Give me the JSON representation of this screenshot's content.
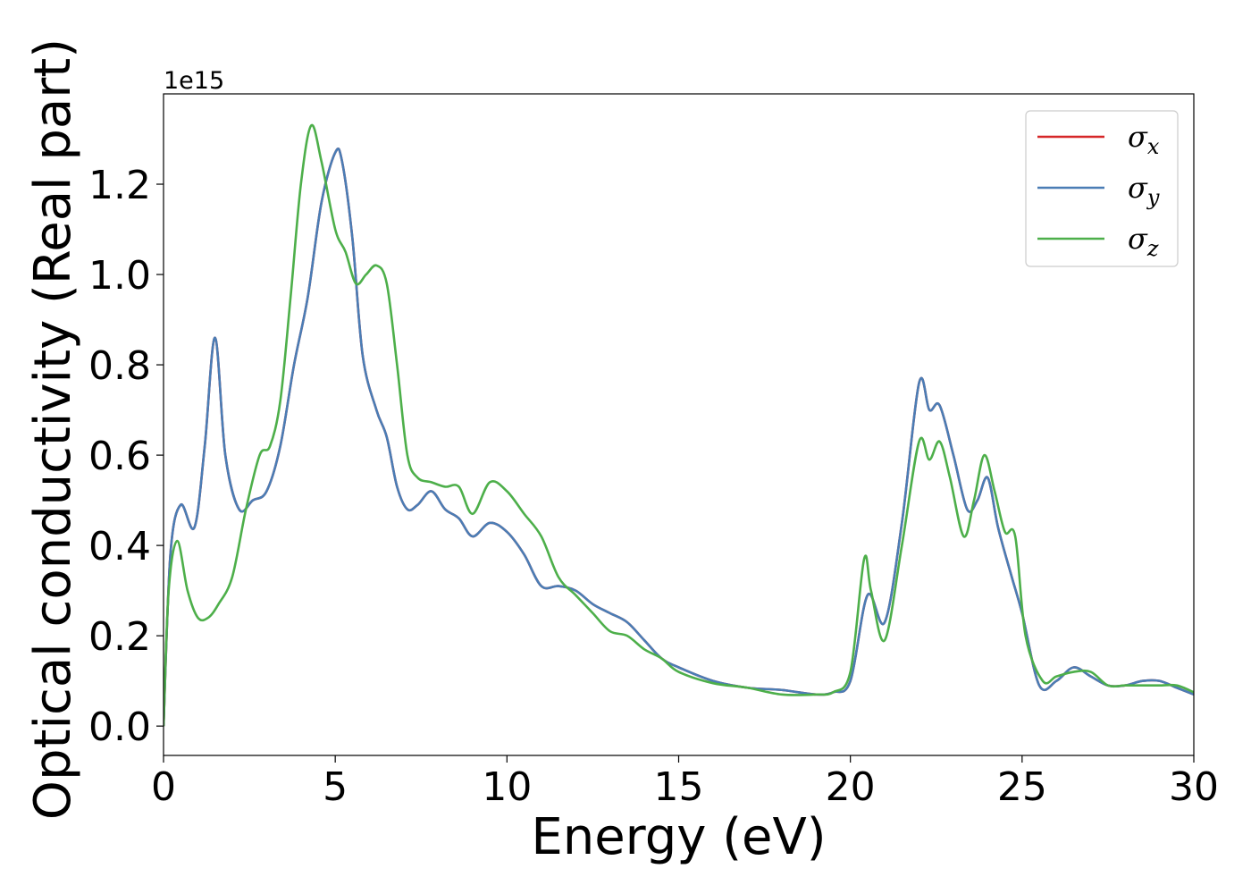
{
  "chart_data": {
    "type": "line",
    "xlabel": "Energy (eV)",
    "ylabel": "Optical conductivity (Real part)",
    "y_offset_label": "1e15",
    "xlim": [
      0,
      30
    ],
    "ylim": [
      -0.065,
      1.4
    ],
    "x_ticks": [
      0,
      5,
      10,
      15,
      20,
      25,
      30
    ],
    "x_tick_labels": [
      "0",
      "5",
      "10",
      "15",
      "20",
      "25",
      "30"
    ],
    "y_ticks": [
      0.0,
      0.2,
      0.4,
      0.6,
      0.8,
      1.0,
      1.2
    ],
    "y_tick_labels": [
      "0.0",
      "0.2",
      "0.4",
      "0.6",
      "0.8",
      "1.0",
      "1.2"
    ],
    "grid": false,
    "legend_position": "top-right",
    "series": [
      {
        "name": "σ_x",
        "legend_base": "σ",
        "legend_sub": "x",
        "color": "#d62728",
        "x": [
          0,
          0.2,
          0.5,
          0.9,
          1.2,
          1.5,
          1.8,
          2.2,
          2.6,
          3.0,
          3.4,
          3.8,
          4.2,
          4.6,
          5.0,
          5.2,
          5.5,
          5.8,
          6.2,
          6.5,
          6.8,
          7.1,
          7.4,
          7.8,
          8.2,
          8.6,
          9.0,
          9.5,
          10.0,
          10.5,
          11.0,
          11.5,
          12.0,
          12.5,
          13.0,
          13.5,
          14.0,
          14.5,
          15.0,
          16.0,
          17.0,
          18.0,
          19.0,
          19.5,
          20.0,
          20.5,
          21.0,
          21.5,
          22.0,
          22.3,
          22.6,
          23.0,
          23.4,
          23.7,
          24.0,
          24.3,
          24.7,
          25.0,
          25.5,
          26.0,
          26.5,
          27.0,
          27.5,
          28.0,
          28.5,
          29.0,
          29.5,
          30.0
        ],
        "y": [
          0.0,
          0.38,
          0.49,
          0.44,
          0.62,
          0.86,
          0.6,
          0.48,
          0.5,
          0.52,
          0.62,
          0.8,
          0.95,
          1.16,
          1.27,
          1.25,
          1.08,
          0.82,
          0.7,
          0.64,
          0.53,
          0.48,
          0.49,
          0.52,
          0.48,
          0.46,
          0.42,
          0.45,
          0.43,
          0.38,
          0.31,
          0.31,
          0.3,
          0.27,
          0.25,
          0.23,
          0.19,
          0.15,
          0.13,
          0.1,
          0.085,
          0.08,
          0.07,
          0.075,
          0.1,
          0.29,
          0.23,
          0.45,
          0.76,
          0.7,
          0.71,
          0.6,
          0.48,
          0.5,
          0.55,
          0.44,
          0.33,
          0.25,
          0.09,
          0.1,
          0.13,
          0.11,
          0.09,
          0.09,
          0.1,
          0.1,
          0.085,
          0.07
        ]
      },
      {
        "name": "σ_y",
        "legend_base": "σ",
        "legend_sub": "y",
        "color": "#4a7db5",
        "x": [
          0,
          0.2,
          0.5,
          0.9,
          1.2,
          1.5,
          1.8,
          2.2,
          2.6,
          3.0,
          3.4,
          3.8,
          4.2,
          4.6,
          5.0,
          5.2,
          5.5,
          5.8,
          6.2,
          6.5,
          6.8,
          7.1,
          7.4,
          7.8,
          8.2,
          8.6,
          9.0,
          9.5,
          10.0,
          10.5,
          11.0,
          11.5,
          12.0,
          12.5,
          13.0,
          13.5,
          14.0,
          14.5,
          15.0,
          16.0,
          17.0,
          18.0,
          19.0,
          19.5,
          20.0,
          20.5,
          21.0,
          21.5,
          22.0,
          22.3,
          22.6,
          23.0,
          23.4,
          23.7,
          24.0,
          24.3,
          24.7,
          25.0,
          25.5,
          26.0,
          26.5,
          27.0,
          27.5,
          28.0,
          28.5,
          29.0,
          29.5,
          30.0
        ],
        "y": [
          0.0,
          0.38,
          0.49,
          0.44,
          0.62,
          0.86,
          0.6,
          0.48,
          0.5,
          0.52,
          0.62,
          0.8,
          0.95,
          1.16,
          1.27,
          1.25,
          1.08,
          0.82,
          0.7,
          0.64,
          0.53,
          0.48,
          0.49,
          0.52,
          0.48,
          0.46,
          0.42,
          0.45,
          0.43,
          0.38,
          0.31,
          0.31,
          0.3,
          0.27,
          0.25,
          0.23,
          0.19,
          0.15,
          0.13,
          0.1,
          0.085,
          0.08,
          0.07,
          0.075,
          0.1,
          0.29,
          0.23,
          0.45,
          0.76,
          0.7,
          0.71,
          0.6,
          0.48,
          0.5,
          0.55,
          0.44,
          0.33,
          0.25,
          0.09,
          0.1,
          0.13,
          0.11,
          0.09,
          0.09,
          0.1,
          0.1,
          0.085,
          0.07
        ]
      },
      {
        "name": "σ_z",
        "legend_base": "σ",
        "legend_sub": "z",
        "color": "#4daf4a",
        "x": [
          0,
          0.15,
          0.4,
          0.7,
          1.0,
          1.3,
          1.6,
          2.0,
          2.4,
          2.8,
          3.1,
          3.4,
          3.7,
          4.0,
          4.3,
          4.6,
          5.0,
          5.3,
          5.6,
          5.9,
          6.2,
          6.5,
          6.8,
          7.1,
          7.4,
          7.8,
          8.2,
          8.6,
          9.0,
          9.5,
          10.0,
          10.5,
          11.0,
          11.5,
          12.0,
          12.5,
          13.0,
          13.5,
          14.0,
          14.5,
          15.0,
          16.0,
          17.0,
          18.0,
          19.0,
          19.5,
          20.0,
          20.4,
          20.6,
          21.0,
          21.5,
          22.0,
          22.3,
          22.6,
          22.9,
          23.3,
          23.6,
          23.9,
          24.2,
          24.5,
          24.8,
          25.1,
          25.6,
          26.0,
          26.5,
          27.0,
          27.5,
          28.0,
          28.5,
          29.0,
          29.5,
          30.0
        ],
        "y": [
          0.0,
          0.3,
          0.41,
          0.3,
          0.24,
          0.24,
          0.27,
          0.33,
          0.48,
          0.6,
          0.62,
          0.72,
          0.95,
          1.2,
          1.33,
          1.25,
          1.1,
          1.05,
          0.98,
          1.0,
          1.02,
          0.98,
          0.8,
          0.6,
          0.55,
          0.54,
          0.53,
          0.53,
          0.47,
          0.54,
          0.52,
          0.47,
          0.42,
          0.33,
          0.29,
          0.25,
          0.21,
          0.2,
          0.17,
          0.15,
          0.12,
          0.095,
          0.085,
          0.07,
          0.07,
          0.075,
          0.12,
          0.37,
          0.3,
          0.19,
          0.4,
          0.63,
          0.59,
          0.63,
          0.55,
          0.42,
          0.5,
          0.6,
          0.52,
          0.43,
          0.42,
          0.2,
          0.1,
          0.11,
          0.12,
          0.12,
          0.09,
          0.09,
          0.09,
          0.09,
          0.09,
          0.075
        ]
      }
    ]
  }
}
